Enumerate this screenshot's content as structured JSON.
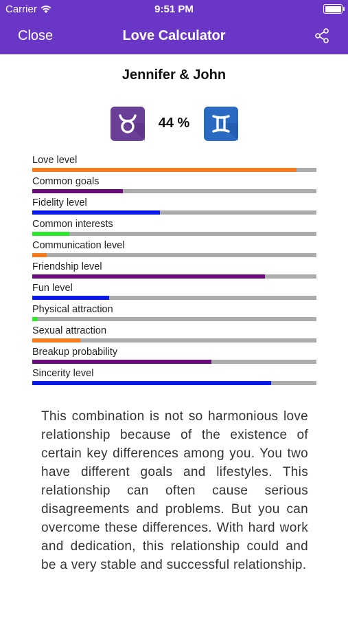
{
  "status": {
    "carrier": "Carrier",
    "time": "9:51 PM"
  },
  "nav": {
    "close_label": "Close",
    "title": "Love Calculator"
  },
  "names": "Jennifer & John",
  "result": {
    "percent": "44 %",
    "left_sign": "taurus-icon",
    "right_sign": "gemini-icon"
  },
  "colors": {
    "primary": "#6a36c5",
    "orange": "#f47b20",
    "purple": "#6b0a7a",
    "blue": "#0b19e8",
    "green": "#2de92d",
    "track": "#acacac"
  },
  "meters": [
    {
      "label": "Love level",
      "value": 0.93,
      "color": "#f47b20"
    },
    {
      "label": "Common goals",
      "value": 0.32,
      "color": "#6b0a7a"
    },
    {
      "label": "Fidelity level",
      "value": 0.45,
      "color": "#0b19e8"
    },
    {
      "label": "Common interests",
      "value": 0.13,
      "color": "#2de92d"
    },
    {
      "label": "Communication level",
      "value": 0.05,
      "color": "#f47b20"
    },
    {
      "label": "Friendship level",
      "value": 0.82,
      "color": "#6b0a7a"
    },
    {
      "label": "Fun level",
      "value": 0.27,
      "color": "#0b19e8"
    },
    {
      "label": "Physical attraction",
      "value": 0.02,
      "color": "#2de92d"
    },
    {
      "label": "Sexual attraction",
      "value": 0.17,
      "color": "#f47b20"
    },
    {
      "label": "Breakup probability",
      "value": 0.63,
      "color": "#6b0a7a"
    },
    {
      "label": "Sincerity level",
      "value": 0.84,
      "color": "#0b19e8"
    }
  ],
  "description": "This combination is not so harmonious love relationship because of the existence of certain key differences among you. You two have different goals and lifestyles. This relationship can often cause serious disagreements and problems. But you can overcome these differences. With hard work and dedication, this relationship could and be a very stable and successful relationship."
}
